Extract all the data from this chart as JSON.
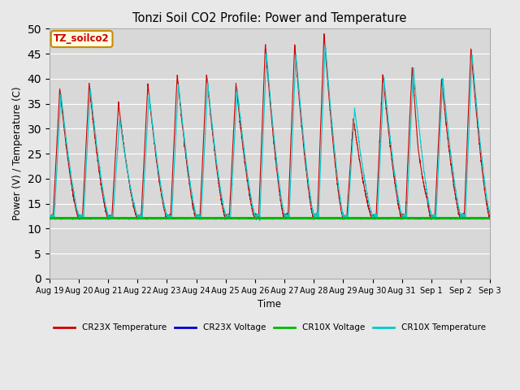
{
  "title": "Tonzi Soil CO2 Profile: Power and Temperature",
  "ylabel": "Power (V) / Temperature (C)",
  "xlabel": "Time",
  "ylim": [
    0,
    50
  ],
  "yticks": [
    0,
    5,
    10,
    15,
    20,
    25,
    30,
    35,
    40,
    45,
    50
  ],
  "background_color": "#e8e8e8",
  "plot_bg_color": "#d8d8d8",
  "legend_label": "TZ_soilco2",
  "legend_entries": [
    "CR23X Temperature",
    "CR23X Voltage",
    "CR10X Voltage",
    "CR10X Temperature"
  ],
  "legend_colors": [
    "#cc0000",
    "#0000cc",
    "#00bb00",
    "#00cccc"
  ],
  "cr23x_temp_color": "#cc0000",
  "cr23x_volt_color": "#0000cc",
  "cr10x_volt_color": "#00bb00",
  "cr10x_temp_color": "#00cccc",
  "volt_level": 12.0,
  "num_days": 15
}
